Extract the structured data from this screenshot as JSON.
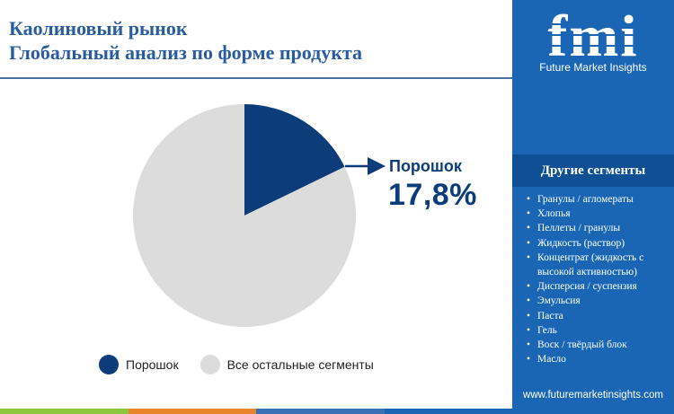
{
  "title": {
    "line1": "Каолиновый рынок",
    "line2": "Глобальный анализ по форме продукта"
  },
  "callout": {
    "label": "Порошок",
    "value": "17,8%"
  },
  "legend": [
    {
      "label": "Порошок",
      "color": "#0d3c7a"
    },
    {
      "label": "Все остальные сегменты",
      "color": "#dcdcdc"
    }
  ],
  "chart_data": {
    "type": "pie",
    "slices": [
      {
        "label": "Порошок",
        "value": 17.8,
        "color": "#0d3c7a"
      },
      {
        "label": "Все остальные сегменты",
        "value": 82.2,
        "color": "#dcdcdc"
      }
    ],
    "legend_position": "bottom"
  },
  "sidebar": {
    "logo_text": "fmi",
    "logo_subtitle": "Future Market Insights",
    "heading": "Другие сегменты",
    "items": [
      "Гранулы / агломераты",
      "Хлопья",
      "Пеллеты / гранулы",
      "Жидкость (раствор)",
      "Концентрат (жидкость с высокой активностью)",
      "Дисперсия / суспензия",
      "Эмульсия",
      "Паста",
      "Гель",
      "Воск / твёрдый блок",
      "Масло"
    ],
    "website": "www.futuremarketinsights.com"
  },
  "colors": {
    "accent": "#1a66b4",
    "title": "#2a5d9f",
    "highlight": "#0d3c7a",
    "bottom_bar": [
      "#8dc63f",
      "#e8842c",
      "#3a70b5",
      "#1a66b4"
    ]
  }
}
